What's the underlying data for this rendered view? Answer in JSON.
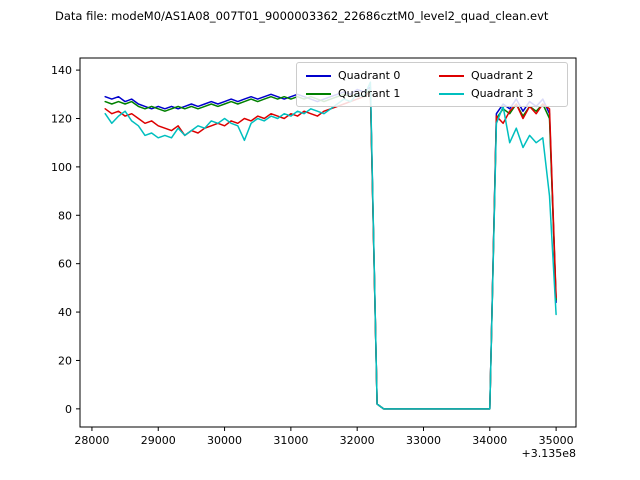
{
  "title": "Data file: modeM0/AS1A08_007T01_9000003362_22686cztM0_level2_quad_clean.evt",
  "chart_data": {
    "type": "line",
    "title": "Data file: modeM0/AS1A08_007T01_9000003362_22686cztM0_level2_quad_clean.evt",
    "xlabel": "",
    "ylabel": "",
    "x_offset_label": "+3.135e8",
    "xlim": [
      27820,
      35300
    ],
    "ylim": [
      -7.5,
      145
    ],
    "x_ticks": [
      28000,
      29000,
      30000,
      31000,
      32000,
      33000,
      34000,
      35000
    ],
    "y_ticks": [
      0,
      20,
      40,
      60,
      80,
      100,
      120,
      140
    ],
    "grid": false,
    "legend_position": "upper right",
    "legend_columns": 2,
    "x": [
      28200,
      28300,
      28400,
      28500,
      28600,
      28700,
      28800,
      28900,
      29000,
      29100,
      29200,
      29300,
      29400,
      29500,
      29600,
      29700,
      29800,
      29900,
      30000,
      30100,
      30200,
      30300,
      30400,
      30500,
      30600,
      30700,
      30800,
      30900,
      31000,
      31100,
      31200,
      31300,
      31400,
      31500,
      31600,
      31700,
      31800,
      31900,
      32000,
      32100,
      32200,
      32300,
      32400,
      32500,
      32600,
      32700,
      32800,
      32900,
      33000,
      33100,
      33200,
      33300,
      33400,
      33500,
      33600,
      33700,
      33800,
      33900,
      34000,
      34100,
      34200,
      34300,
      34400,
      34500,
      34600,
      34700,
      34800,
      34900,
      35000
    ],
    "series": [
      {
        "name": "Quadrant 0",
        "color": "#0000cc",
        "values": [
          129,
          128,
          129,
          127,
          128,
          126,
          125,
          124,
          125,
          124,
          125,
          124,
          125,
          126,
          125,
          126,
          127,
          126,
          127,
          128,
          127,
          128,
          129,
          128,
          129,
          130,
          129,
          128,
          129,
          130,
          129,
          128,
          127,
          128,
          129,
          130,
          131,
          130,
          132,
          131,
          133,
          2,
          0,
          0,
          0,
          0,
          0,
          0,
          0,
          0,
          0,
          0,
          0,
          0,
          0,
          0,
          0,
          0,
          0,
          122,
          126,
          124,
          128,
          123,
          127,
          125,
          128,
          122,
          44
        ]
      },
      {
        "name": "Quadrant 1",
        "color": "#008000",
        "values": [
          127,
          126,
          127,
          126,
          127,
          125,
          124,
          125,
          124,
          123,
          124,
          125,
          124,
          125,
          124,
          125,
          126,
          125,
          126,
          127,
          126,
          127,
          128,
          127,
          128,
          129,
          128,
          129,
          128,
          129,
          128,
          129,
          128,
          127,
          128,
          129,
          130,
          129,
          130,
          129,
          132,
          2,
          0,
          0,
          0,
          0,
          0,
          0,
          0,
          0,
          0,
          0,
          0,
          0,
          0,
          0,
          0,
          0,
          0,
          120,
          124,
          122,
          126,
          121,
          125,
          123,
          126,
          120,
          45
        ]
      },
      {
        "name": "Quadrant 2",
        "color": "#dd0000",
        "values": [
          124,
          122,
          123,
          121,
          122,
          120,
          118,
          119,
          117,
          116,
          115,
          117,
          113,
          115,
          114,
          116,
          117,
          118,
          117,
          119,
          118,
          120,
          119,
          121,
          120,
          122,
          121,
          120,
          122,
          121,
          123,
          122,
          121,
          123,
          124,
          125,
          126,
          127,
          128,
          129,
          131,
          2,
          0,
          0,
          0,
          0,
          0,
          0,
          0,
          0,
          0,
          0,
          0,
          0,
          0,
          0,
          0,
          0,
          0,
          121,
          118,
          123,
          126,
          120,
          125,
          122,
          126,
          124,
          46
        ]
      },
      {
        "name": "Quadrant 3",
        "color": "#00bfbf",
        "values": [
          122,
          118,
          121,
          123,
          119,
          117,
          113,
          114,
          112,
          113,
          112,
          116,
          113,
          115,
          117,
          116,
          119,
          118,
          120,
          118,
          117,
          111,
          118,
          120,
          119,
          121,
          120,
          122,
          121,
          123,
          122,
          124,
          123,
          122,
          124,
          126,
          128,
          127,
          130,
          129,
          135,
          2,
          0,
          0,
          0,
          0,
          0,
          0,
          0,
          0,
          0,
          0,
          0,
          0,
          0,
          0,
          0,
          0,
          0,
          118,
          125,
          110,
          116,
          108,
          113,
          110,
          112,
          88,
          39
        ]
      }
    ]
  }
}
